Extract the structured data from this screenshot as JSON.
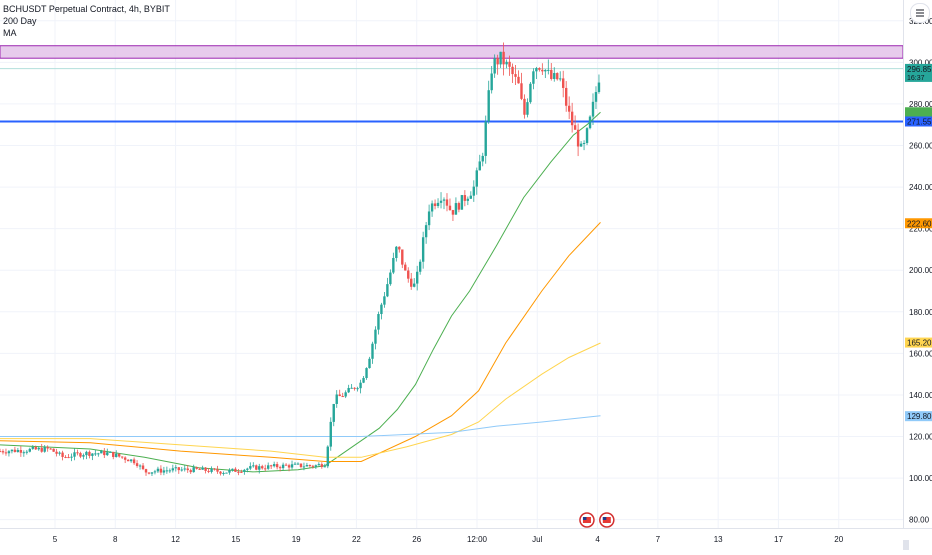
{
  "header": {
    "symbol_line": "BCHUSDT Perpetual Contract, 4h, BYBIT",
    "indicator_1": "200 Day",
    "indicator_2": "MA"
  },
  "colors": {
    "bull": "#26a69a",
    "bear": "#ef5350",
    "grid": "#f0f3fa",
    "axis_text": "#131722",
    "zone_fill": "#e1bee7",
    "zone_border": "#9c27b0",
    "support_line": "#2962ff",
    "thin_line": "#b2dfdb",
    "ma_green": "#4caf50",
    "ma_orange": "#ff9800",
    "ma_yellow": "#ffd54f",
    "ma_blue": "#90caf9"
  },
  "chart_data": {
    "type": "candlestick",
    "title": "BCHUSDT Perpetual Contract, 4h, BYBIT",
    "xlabel": "",
    "ylabel": "",
    "ylim": [
      76,
      330
    ],
    "y_ticks": [
      "80.00",
      "100.00",
      "120.00",
      "140.00",
      "160.00",
      "180.00",
      "200.00",
      "220.00",
      "240.00",
      "260.00",
      "280.00",
      "300.00",
      "320.00"
    ],
    "x_ticks": [
      "5",
      "8",
      "12",
      "15",
      "19",
      "22",
      "26",
      "12:00",
      "Jul",
      "4",
      "7",
      "13",
      "17",
      "20"
    ],
    "price_labels": [
      {
        "value": 296.85,
        "text": "296.85",
        "sub": "16:37",
        "color": "#26a69a"
      },
      {
        "value": 276.0,
        "text": "",
        "sub": "",
        "color": "#4caf50"
      },
      {
        "value": 271.55,
        "text": "271.55",
        "sub": "",
        "color": "#2962ff"
      },
      {
        "value": 222.6,
        "text": "222.60",
        "sub": "",
        "color": "#ff9800"
      },
      {
        "value": 165.2,
        "text": "165.20",
        "sub": "",
        "color": "#ffd54f"
      },
      {
        "value": 129.8,
        "text": "129.80",
        "sub": "",
        "color": "#90caf9"
      }
    ],
    "resistance_zone": [
      302,
      308
    ],
    "support_level": 271.55,
    "thin_level": 297,
    "ma_series": [
      {
        "color": "#4caf50",
        "points": [
          [
            0,
            116
          ],
          [
            0.1,
            114
          ],
          [
            0.16,
            110
          ],
          [
            0.22,
            105
          ],
          [
            0.28,
            103
          ],
          [
            0.33,
            104
          ],
          [
            0.36,
            106
          ],
          [
            0.38,
            112
          ],
          [
            0.4,
            118
          ],
          [
            0.42,
            124
          ],
          [
            0.44,
            133
          ],
          [
            0.46,
            145
          ],
          [
            0.48,
            162
          ],
          [
            0.5,
            178
          ],
          [
            0.52,
            190
          ],
          [
            0.55,
            212
          ],
          [
            0.58,
            235
          ],
          [
            0.61,
            252
          ],
          [
            0.635,
            265
          ],
          [
            0.65,
            270
          ],
          [
            0.665,
            276
          ]
        ]
      },
      {
        "color": "#ff9800",
        "points": [
          [
            0,
            118
          ],
          [
            0.1,
            117
          ],
          [
            0.2,
            113
          ],
          [
            0.3,
            110
          ],
          [
            0.36,
            108
          ],
          [
            0.4,
            108
          ],
          [
            0.42,
            112
          ],
          [
            0.46,
            120
          ],
          [
            0.5,
            130
          ],
          [
            0.53,
            142
          ],
          [
            0.56,
            165
          ],
          [
            0.6,
            190
          ],
          [
            0.63,
            207
          ],
          [
            0.665,
            223
          ]
        ]
      },
      {
        "color": "#ffd54f",
        "points": [
          [
            0,
            119
          ],
          [
            0.1,
            119
          ],
          [
            0.2,
            116
          ],
          [
            0.3,
            113
          ],
          [
            0.36,
            110
          ],
          [
            0.4,
            110
          ],
          [
            0.45,
            115
          ],
          [
            0.5,
            121
          ],
          [
            0.53,
            127
          ],
          [
            0.56,
            138
          ],
          [
            0.6,
            150
          ],
          [
            0.63,
            158
          ],
          [
            0.665,
            165
          ]
        ]
      },
      {
        "color": "#90caf9",
        "points": [
          [
            0,
            120
          ],
          [
            0.1,
            120
          ],
          [
            0.2,
            120
          ],
          [
            0.3,
            120
          ],
          [
            0.36,
            120
          ],
          [
            0.4,
            120
          ],
          [
            0.5,
            122
          ],
          [
            0.55,
            125
          ],
          [
            0.6,
            127
          ],
          [
            0.665,
            130
          ]
        ]
      }
    ],
    "anchors": [
      [
        0.0,
        113
      ],
      [
        0.055,
        114
      ],
      [
        0.07,
        110
      ],
      [
        0.08,
        111
      ],
      [
        0.095,
        112
      ],
      [
        0.12,
        112
      ],
      [
        0.15,
        108
      ],
      [
        0.16,
        103
      ],
      [
        0.19,
        104
      ],
      [
        0.22,
        104
      ],
      [
        0.25,
        103
      ],
      [
        0.28,
        105
      ],
      [
        0.32,
        106
      ],
      [
        0.35,
        106
      ],
      [
        0.36,
        107
      ],
      [
        0.37,
        138
      ],
      [
        0.38,
        140
      ],
      [
        0.4,
        146
      ],
      [
        0.41,
        160
      ],
      [
        0.42,
        180
      ],
      [
        0.43,
        195
      ],
      [
        0.44,
        212
      ],
      [
        0.45,
        197
      ],
      [
        0.46,
        192
      ],
      [
        0.475,
        230
      ],
      [
        0.49,
        237
      ],
      [
        0.5,
        228
      ],
      [
        0.515,
        235
      ],
      [
        0.525,
        240
      ],
      [
        0.535,
        258
      ],
      [
        0.545,
        299
      ],
      [
        0.555,
        302
      ],
      [
        0.565,
        296
      ],
      [
        0.575,
        288
      ],
      [
        0.58,
        273
      ],
      [
        0.59,
        298
      ],
      [
        0.6,
        299
      ],
      [
        0.61,
        292
      ],
      [
        0.62,
        292
      ],
      [
        0.63,
        275
      ],
      [
        0.645,
        256
      ],
      [
        0.655,
        275
      ],
      [
        0.665,
        296.85
      ]
    ],
    "events": [
      {
        "x": 0.65,
        "label": "US economic event"
      },
      {
        "x": 0.672,
        "label": "US economic event"
      }
    ]
  }
}
